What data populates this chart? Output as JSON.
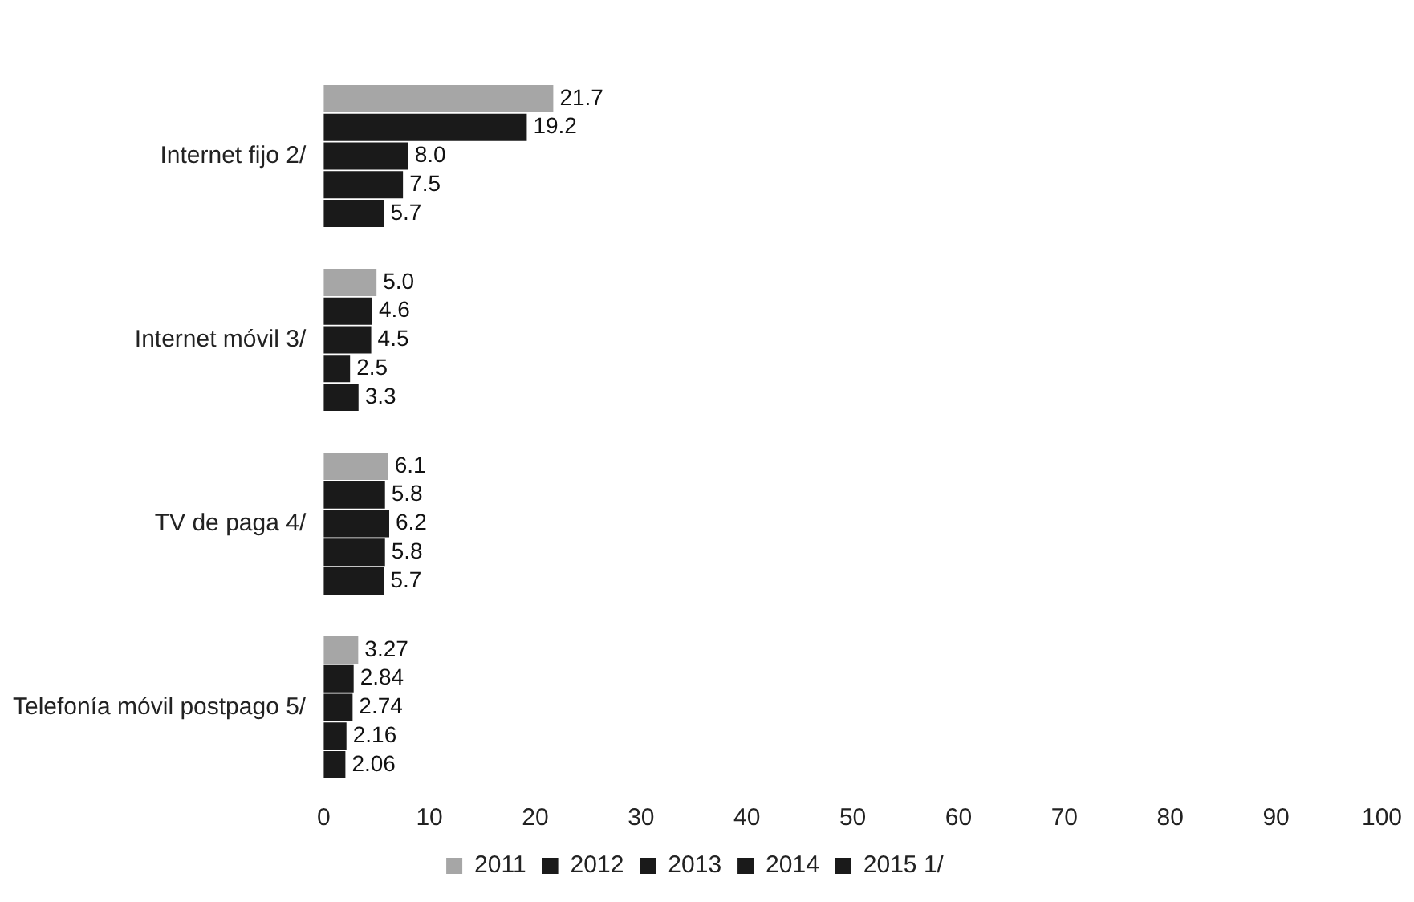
{
  "chart_data": {
    "type": "bar",
    "orientation": "horizontal",
    "categories": [
      "Internet fijo 2/",
      "Internet móvil 3/",
      "TV de paga 4/",
      "Telefonía móvil postpago 5/"
    ],
    "series": [
      {
        "name": "2011",
        "color": "#a6a6a6",
        "values": [
          21.7,
          5.0,
          6.1,
          3.27
        ],
        "value_labels": [
          "21.7",
          "5.0",
          "6.1",
          "3.27"
        ]
      },
      {
        "name": "2012",
        "color": "#1a1a1a",
        "values": [
          19.2,
          4.6,
          5.8,
          2.84
        ],
        "value_labels": [
          "19.2",
          "4.6",
          "5.8",
          "2.84"
        ]
      },
      {
        "name": "2013",
        "color": "#1a1a1a",
        "values": [
          8.0,
          4.5,
          6.2,
          2.74
        ],
        "value_labels": [
          "8.0",
          "4.5",
          "6.2",
          "2.74"
        ]
      },
      {
        "name": "2014",
        "color": "#1a1a1a",
        "values": [
          7.5,
          2.5,
          5.8,
          2.16
        ],
        "value_labels": [
          "7.5",
          "2.5",
          "5.8",
          "2.16"
        ]
      },
      {
        "name": "2015 1/",
        "color": "#1a1a1a",
        "values": [
          5.7,
          3.3,
          5.7,
          2.06
        ],
        "value_labels": [
          "5.7",
          "3.3",
          "5.7",
          "2.06"
        ]
      }
    ],
    "xlim": [
      0,
      100
    ],
    "xticks": [
      0,
      10,
      20,
      30,
      40,
      50,
      60,
      70,
      80,
      90,
      100
    ],
    "grid": false,
    "legend": "bottom"
  }
}
